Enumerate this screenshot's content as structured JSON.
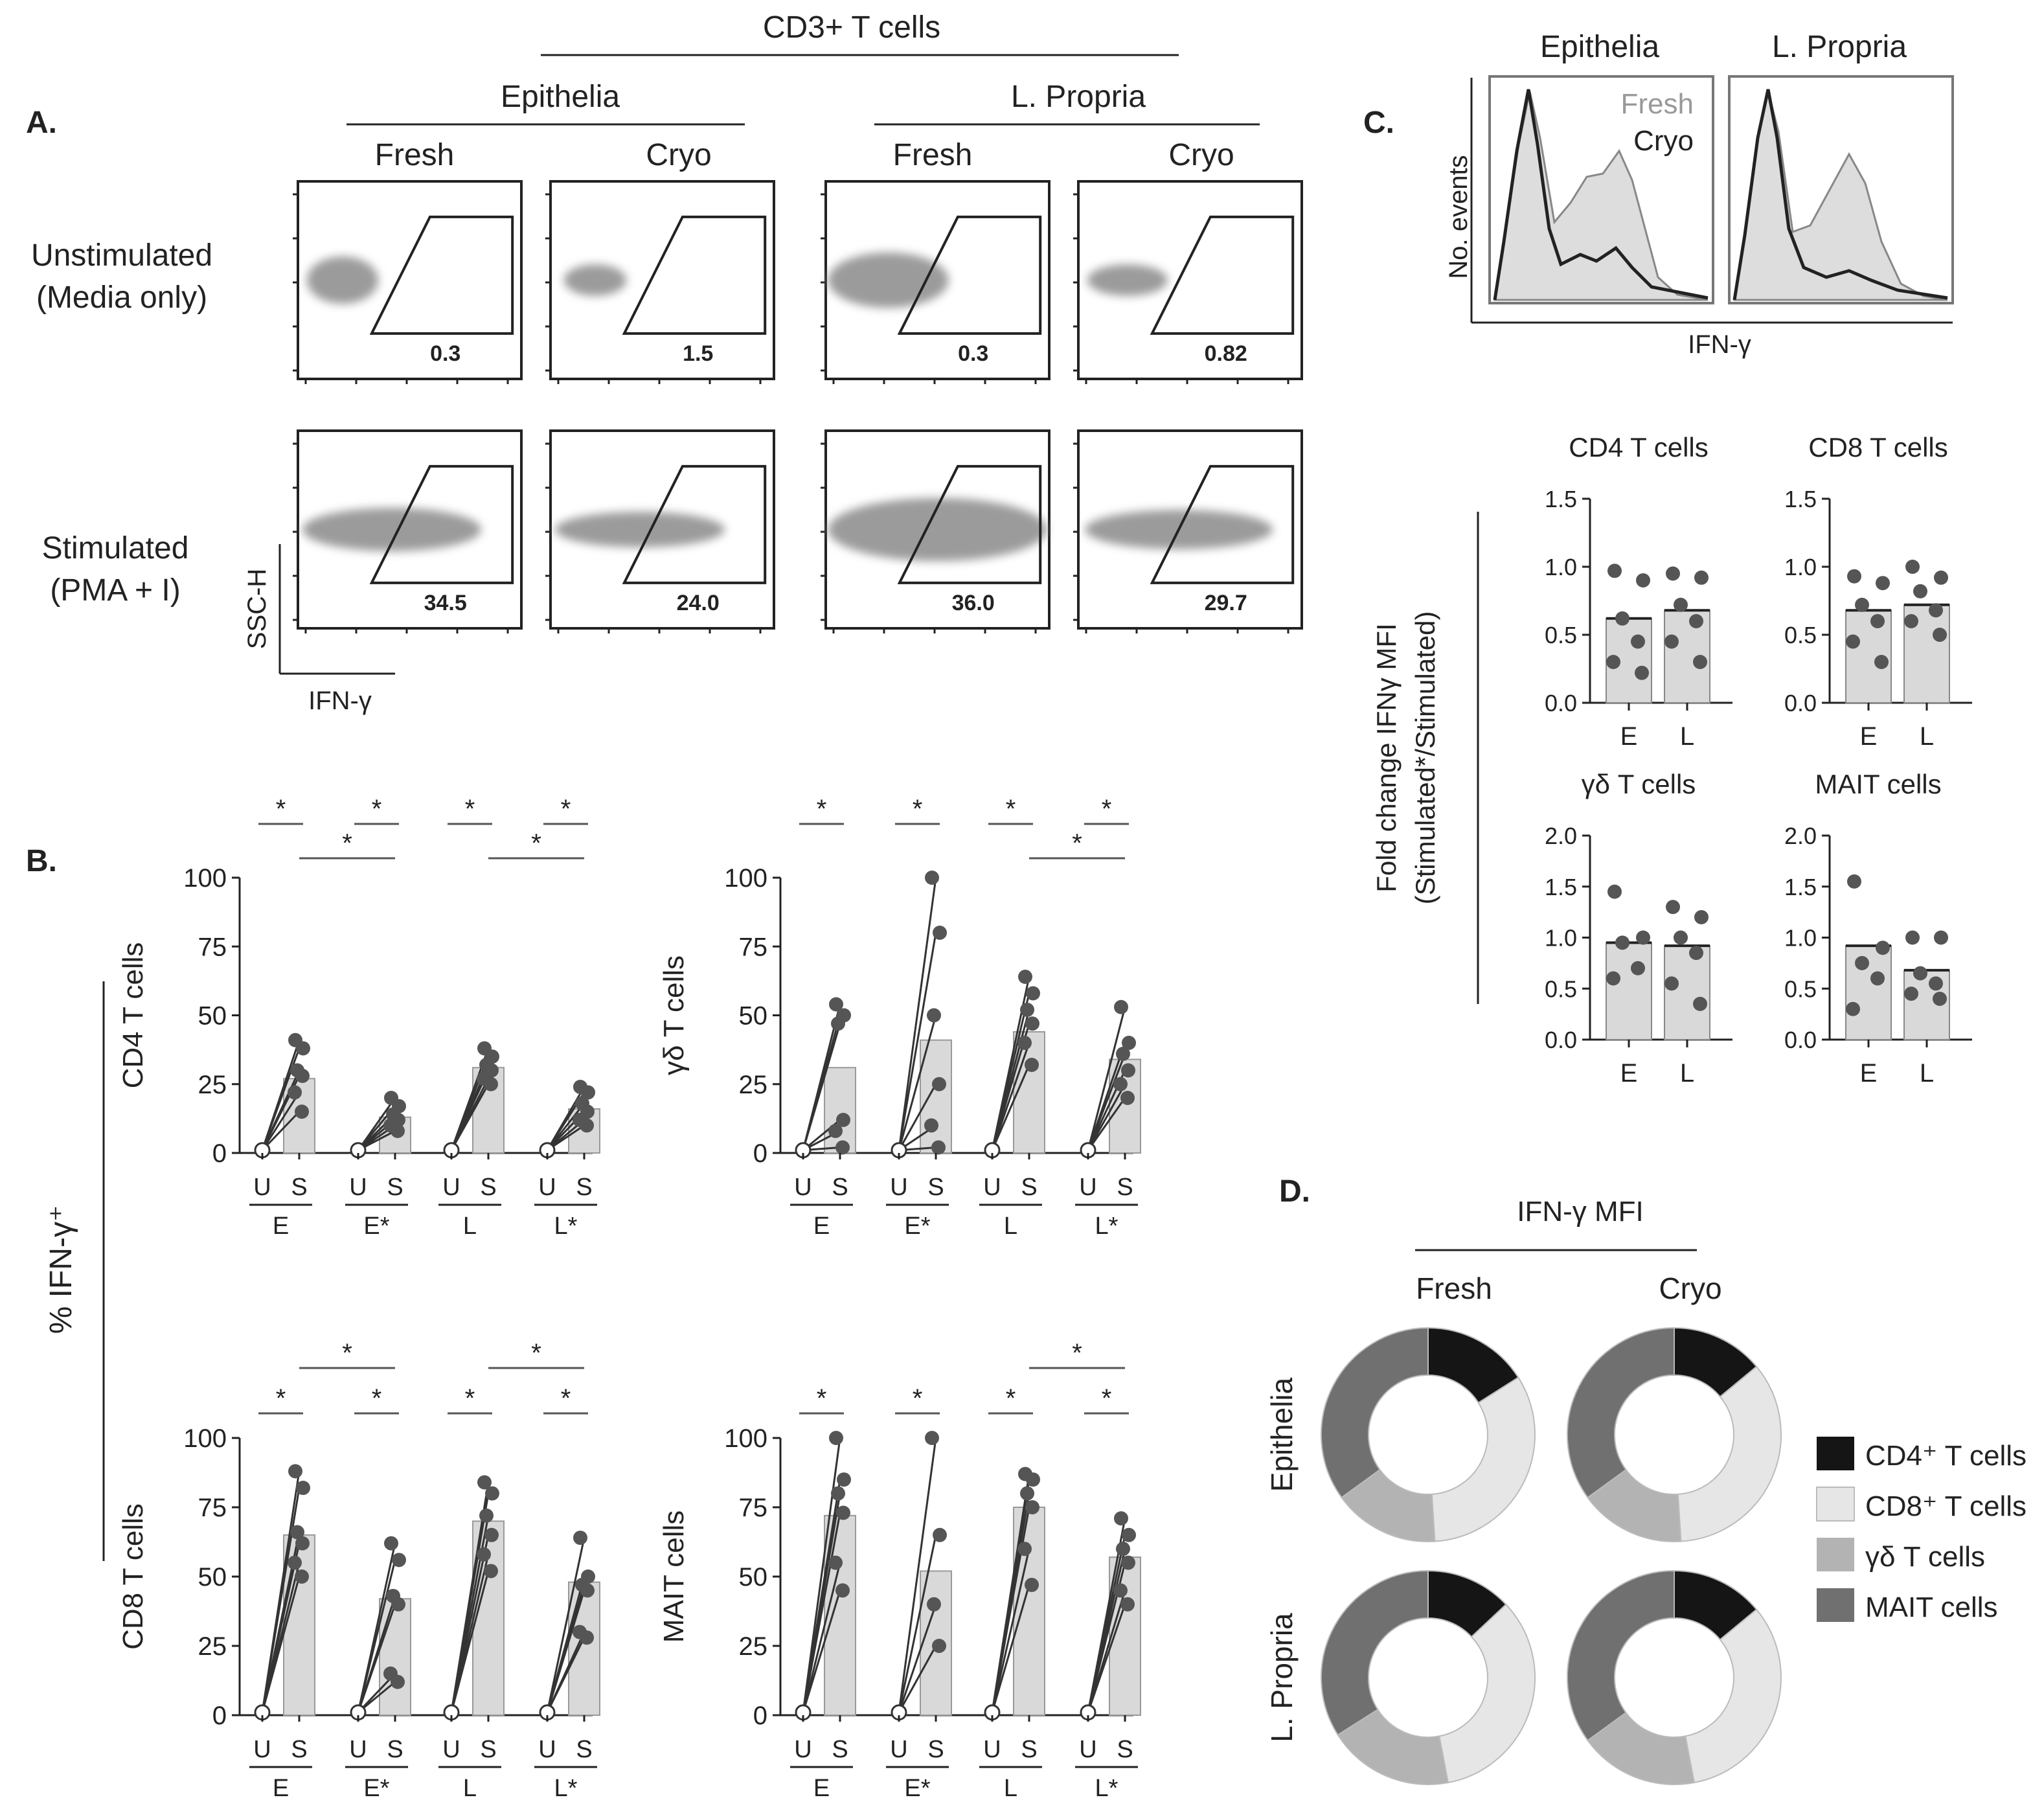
{
  "colors": {
    "ink": "#222222",
    "dot": "#555555",
    "gate": "#8a8a8a",
    "bar": "#d9d9d9",
    "fresh_fill": "#dddddd",
    "cd4": "#151515",
    "cd8": "#e6e6e6",
    "gd": "#b3b3b3",
    "mait": "#707070"
  },
  "panel_a": {
    "label": "A.",
    "top_title": "CD3+ T cells",
    "groups": [
      "Epithelia",
      "L. Propria"
    ],
    "columns": [
      "Fresh",
      "Cryo",
      "Fresh",
      "Cryo"
    ],
    "rows": [
      {
        "label_lines": [
          "Unstimulated",
          "(Media only)"
        ],
        "values": [
          "0.3",
          "1.5",
          "0.3",
          "0.82"
        ]
      },
      {
        "label_lines": [
          "Stimulated",
          "(PMA + I)"
        ],
        "values": [
          "34.5",
          "24.0",
          "36.0",
          "29.7"
        ]
      }
    ],
    "yaxis": "SSC-H",
    "xaxis": "IFN-γ"
  },
  "panel_b": {
    "label": "B.",
    "side_label": "% IFN-γ⁺",
    "star": "*",
    "us_labels": [
      "U",
      "S"
    ],
    "group_labels": [
      "E",
      "E*",
      "L",
      "L*"
    ]
  },
  "panel_c": {
    "label": "C.",
    "hist_titles": [
      "Epithelia",
      "L. Propria"
    ],
    "legend": [
      "Fresh",
      "Cryo"
    ],
    "hist_yaxis": "No. events",
    "hist_xaxis": "IFN-γ",
    "fold_ylabel_lines": [
      "Fold change IFNγ MFI",
      "(Stimulated*/Stimulated)"
    ],
    "bar_xlabels": [
      "E",
      "L"
    ]
  },
  "panel_d": {
    "label": "D.",
    "title": "IFN-γ MFI",
    "columns": [
      "Fresh",
      "Cryo"
    ],
    "rows": [
      "Epithelia",
      "L. Propria"
    ],
    "legend": [
      "CD4⁺ T cells",
      "CD8⁺ T cells",
      "γδ T cells",
      "MAIT cells"
    ]
  },
  "chart_data": [
    {
      "type": "bar",
      "panel": "B",
      "ylabel": "CD4 T cells",
      "ylim": [
        0,
        100
      ],
      "yticks": [
        "0",
        "25",
        "50",
        "75",
        "100"
      ],
      "groups": [
        "E",
        "E*",
        "L",
        "L*"
      ],
      "unstim": [
        1,
        1,
        1,
        1
      ],
      "stim_means": [
        27,
        13,
        31,
        16
      ],
      "stim_points": [
        [
          41,
          38,
          30,
          28,
          22,
          15
        ],
        [
          20,
          17,
          14,
          12,
          10,
          8
        ],
        [
          38,
          35,
          32,
          30,
          27,
          25
        ],
        [
          24,
          22,
          18,
          15,
          12,
          10
        ]
      ],
      "significance": [
        {
          "from": "U-E",
          "to": "S-E",
          "label": "*"
        },
        {
          "from": "U-E*",
          "to": "S-E*",
          "label": "*"
        },
        {
          "from": "U-L",
          "to": "S-L",
          "label": "*"
        },
        {
          "from": "U-L*",
          "to": "S-L*",
          "label": "*"
        },
        {
          "from": "S-E",
          "to": "S-E*",
          "label": "*"
        },
        {
          "from": "S-L",
          "to": "S-L*",
          "label": "*"
        }
      ]
    },
    {
      "type": "bar",
      "panel": "B",
      "ylabel": "γδ T cells",
      "ylim": [
        0,
        100
      ],
      "yticks": [
        "0",
        "25",
        "50",
        "75",
        "100"
      ],
      "groups": [
        "E",
        "E*",
        "L",
        "L*"
      ],
      "unstim": [
        1,
        1,
        1,
        1
      ],
      "stim_means": [
        31,
        41,
        44,
        34
      ],
      "stim_points": [
        [
          54,
          50,
          47,
          12,
          8,
          2
        ],
        [
          100,
          80,
          50,
          25,
          10,
          2
        ],
        [
          64,
          58,
          52,
          47,
          40,
          32
        ],
        [
          53,
          40,
          36,
          30,
          25,
          20
        ]
      ],
      "significance": [
        {
          "from": "U-E",
          "to": "S-E",
          "label": "*"
        },
        {
          "from": "U-E*",
          "to": "S-E*",
          "label": "*"
        },
        {
          "from": "U-L",
          "to": "S-L",
          "label": "*"
        },
        {
          "from": "U-L*",
          "to": "S-L*",
          "label": "*"
        },
        {
          "from": "S-L",
          "to": "S-L*",
          "label": "*"
        }
      ]
    },
    {
      "type": "bar",
      "panel": "B",
      "ylabel": "CD8 T cells",
      "ylim": [
        0,
        100
      ],
      "yticks": [
        "0",
        "25",
        "50",
        "75",
        "100"
      ],
      "groups": [
        "E",
        "E*",
        "L",
        "L*"
      ],
      "unstim": [
        1,
        1,
        1,
        1
      ],
      "stim_means": [
        65,
        42,
        70,
        48
      ],
      "stim_points": [
        [
          88,
          82,
          66,
          62,
          55,
          50
        ],
        [
          62,
          56,
          43,
          40,
          15,
          12
        ],
        [
          84,
          80,
          72,
          65,
          58,
          52
        ],
        [
          64,
          50,
          47,
          45,
          30,
          28
        ]
      ],
      "significance": [
        {
          "from": "U-E",
          "to": "S-E",
          "label": "*"
        },
        {
          "from": "U-E*",
          "to": "S-E*",
          "label": "*"
        },
        {
          "from": "U-L",
          "to": "S-L",
          "label": "*"
        },
        {
          "from": "U-L*",
          "to": "S-L*",
          "label": "*"
        },
        {
          "from": "S-E",
          "to": "S-E*",
          "label": "*"
        },
        {
          "from": "S-L",
          "to": "S-L*",
          "label": "*"
        }
      ]
    },
    {
      "type": "bar",
      "panel": "B",
      "ylabel": "MAIT cells",
      "ylim": [
        0,
        100
      ],
      "yticks": [
        "0",
        "25",
        "50",
        "75",
        "100"
      ],
      "groups": [
        "E",
        "E*",
        "L",
        "L*"
      ],
      "unstim": [
        1,
        1,
        1,
        1
      ],
      "stim_means": [
        72,
        52,
        75,
        57
      ],
      "stim_points": [
        [
          100,
          85,
          80,
          73,
          55,
          45
        ],
        [
          100,
          65,
          40,
          25
        ],
        [
          87,
          85,
          80,
          75,
          60,
          47
        ],
        [
          71,
          65,
          60,
          55,
          45,
          40
        ]
      ],
      "significance": [
        {
          "from": "U-E",
          "to": "S-E",
          "label": "*"
        },
        {
          "from": "U-E*",
          "to": "S-E*",
          "label": "*"
        },
        {
          "from": "U-L",
          "to": "S-L",
          "label": "*"
        },
        {
          "from": "U-L*",
          "to": "S-L*",
          "label": "*"
        },
        {
          "from": "S-L",
          "to": "S-L*",
          "label": "*"
        }
      ]
    },
    {
      "type": "bar",
      "panel": "C",
      "title": "CD4 T cells",
      "ylim": [
        0,
        1.5
      ],
      "yticks": [
        "0.0",
        "0.5",
        "1.0",
        "1.5"
      ],
      "categories": [
        "E",
        "L"
      ],
      "values": [
        0.62,
        0.68
      ],
      "points": [
        [
          0.97,
          0.9,
          0.62,
          0.45,
          0.3,
          0.22
        ],
        [
          0.95,
          0.92,
          0.72,
          0.6,
          0.45,
          0.3
        ]
      ]
    },
    {
      "type": "bar",
      "panel": "C",
      "title": "CD8 T cells",
      "ylim": [
        0,
        1.5
      ],
      "yticks": [
        "0.0",
        "0.5",
        "1.0",
        "1.5"
      ],
      "categories": [
        "E",
        "L"
      ],
      "values": [
        0.68,
        0.72
      ],
      "points": [
        [
          0.93,
          0.88,
          0.72,
          0.6,
          0.45,
          0.3
        ],
        [
          1.0,
          0.92,
          0.82,
          0.68,
          0.6,
          0.5
        ]
      ]
    },
    {
      "type": "bar",
      "panel": "C",
      "title": "γδ T cells",
      "ylim": [
        0,
        2.0
      ],
      "yticks": [
        "0.0",
        "0.5",
        "1.0",
        "1.5",
        "2.0"
      ],
      "categories": [
        "E",
        "L"
      ],
      "values": [
        0.95,
        0.92
      ],
      "points": [
        [
          1.45,
          1.0,
          0.95,
          0.7,
          0.6
        ],
        [
          1.3,
          1.2,
          1.0,
          0.85,
          0.55,
          0.35
        ]
      ]
    },
    {
      "type": "bar",
      "panel": "C",
      "title": "MAIT cells",
      "ylim": [
        0,
        2.0
      ],
      "yticks": [
        "0.0",
        "0.5",
        "1.0",
        "1.5",
        "2.0"
      ],
      "categories": [
        "E",
        "L"
      ],
      "values": [
        0.92,
        0.68
      ],
      "points": [
        [
          1.55,
          0.9,
          0.75,
          0.6,
          0.3
        ],
        [
          1.0,
          1.0,
          0.65,
          0.55,
          0.45,
          0.4
        ]
      ]
    },
    {
      "type": "pie",
      "panel": "D",
      "title": "Epithelia Fresh",
      "categories": [
        "CD4⁺ T cells",
        "CD8⁺ T cells",
        "γδ T cells",
        "MAIT cells"
      ],
      "values": [
        16,
        33,
        16,
        35
      ]
    },
    {
      "type": "pie",
      "panel": "D",
      "title": "Epithelia Cryo",
      "categories": [
        "CD4⁺ T cells",
        "CD8⁺ T cells",
        "γδ T cells",
        "MAIT cells"
      ],
      "values": [
        14,
        35,
        16,
        35
      ]
    },
    {
      "type": "pie",
      "panel": "D",
      "title": "L. Propria Fresh",
      "categories": [
        "CD4⁺ T cells",
        "CD8⁺ T cells",
        "γδ T cells",
        "MAIT cells"
      ],
      "values": [
        13,
        34,
        19,
        34
      ]
    },
    {
      "type": "pie",
      "panel": "D",
      "title": "L. Propria Cryo",
      "categories": [
        "CD4⁺ T cells",
        "CD8⁺ T cells",
        "γδ T cells",
        "MAIT cells"
      ],
      "values": [
        14,
        33,
        18,
        35
      ]
    }
  ]
}
